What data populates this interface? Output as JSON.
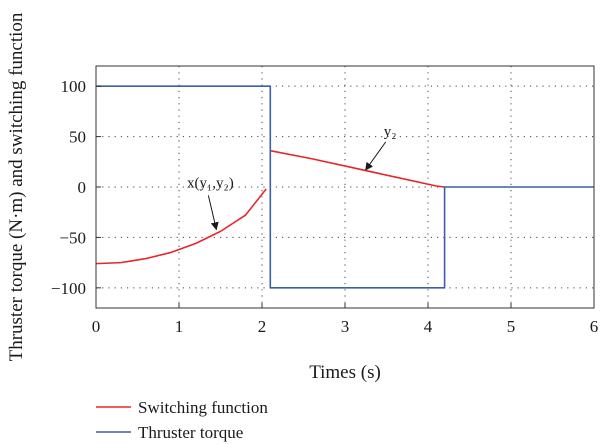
{
  "chart_data": {
    "type": "line",
    "title": "",
    "xlabel": "Times (s)",
    "ylabel": "Thruster torque (N·m) and switching function",
    "xlim": [
      0,
      6
    ],
    "ylim": [
      -120,
      120
    ],
    "xticks": [
      0,
      1,
      2,
      3,
      4,
      5,
      6
    ],
    "yticks": [
      100,
      50,
      0,
      -50,
      -100
    ],
    "grid": true,
    "legend_position": "bottom-left",
    "series": [
      {
        "name": "Switching function",
        "color": "#e8262a",
        "points": [
          [
            0,
            -76
          ],
          [
            0.3,
            -75
          ],
          [
            0.6,
            -71
          ],
          [
            0.9,
            -65
          ],
          [
            1.2,
            -56
          ],
          [
            1.5,
            -44
          ],
          [
            1.8,
            -28
          ],
          [
            2.05,
            -2
          ],
          [
            2.1,
            null
          ],
          [
            2.1,
            36
          ],
          [
            2.6,
            28
          ],
          [
            3.1,
            19
          ],
          [
            3.6,
            10
          ],
          [
            4.1,
            1
          ],
          [
            4.2,
            0
          ]
        ]
      },
      {
        "name": "Thruster torque",
        "color": "#3a5fa8",
        "points": [
          [
            0,
            100
          ],
          [
            2.1,
            100
          ],
          [
            2.1,
            -100
          ],
          [
            4.2,
            -100
          ],
          [
            4.2,
            0
          ],
          [
            6,
            0
          ]
        ]
      }
    ],
    "annotations": [
      {
        "text": "y₂",
        "points_to": [
          3.25,
          17
        ]
      },
      {
        "text": "x(y₁,y₂)",
        "points_to": [
          1.45,
          -42
        ]
      }
    ]
  }
}
